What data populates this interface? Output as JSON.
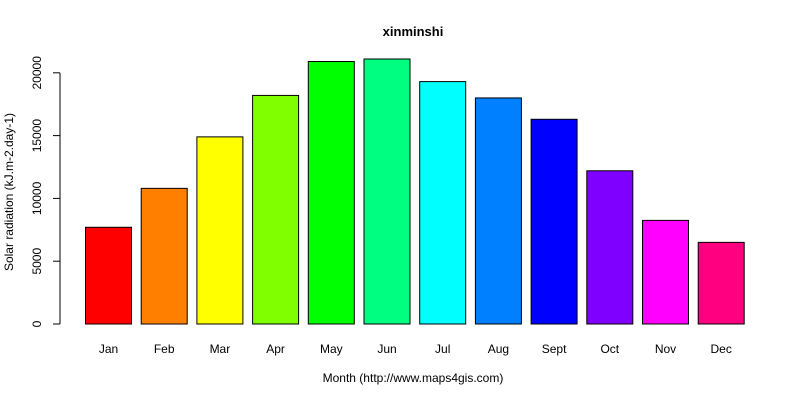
{
  "chart_data": {
    "type": "bar",
    "title": "xinminshi",
    "xlabel": "Month (http://www.maps4gis.com)",
    "ylabel": "Solar radiation (kJ.m-2.day-1)",
    "categories": [
      "Jan",
      "Feb",
      "Mar",
      "Apr",
      "May",
      "Jun",
      "Jul",
      "Aug",
      "Sept",
      "Oct",
      "Nov",
      "Dec"
    ],
    "values": [
      7700,
      10800,
      14900,
      18200,
      20900,
      21100,
      19300,
      18000,
      16300,
      12200,
      8250,
      6500
    ],
    "colors": [
      "#FF0000",
      "#FF8000",
      "#FFFF00",
      "#80FF00",
      "#00FF00",
      "#00FF80",
      "#00FFFF",
      "#0080FF",
      "#0000FF",
      "#8000FF",
      "#FF00FF",
      "#FF0080"
    ],
    "ylim": [
      0,
      21100
    ],
    "yticks": [
      0,
      5000,
      10000,
      15000,
      20000
    ],
    "grid": false,
    "legend": "none"
  }
}
